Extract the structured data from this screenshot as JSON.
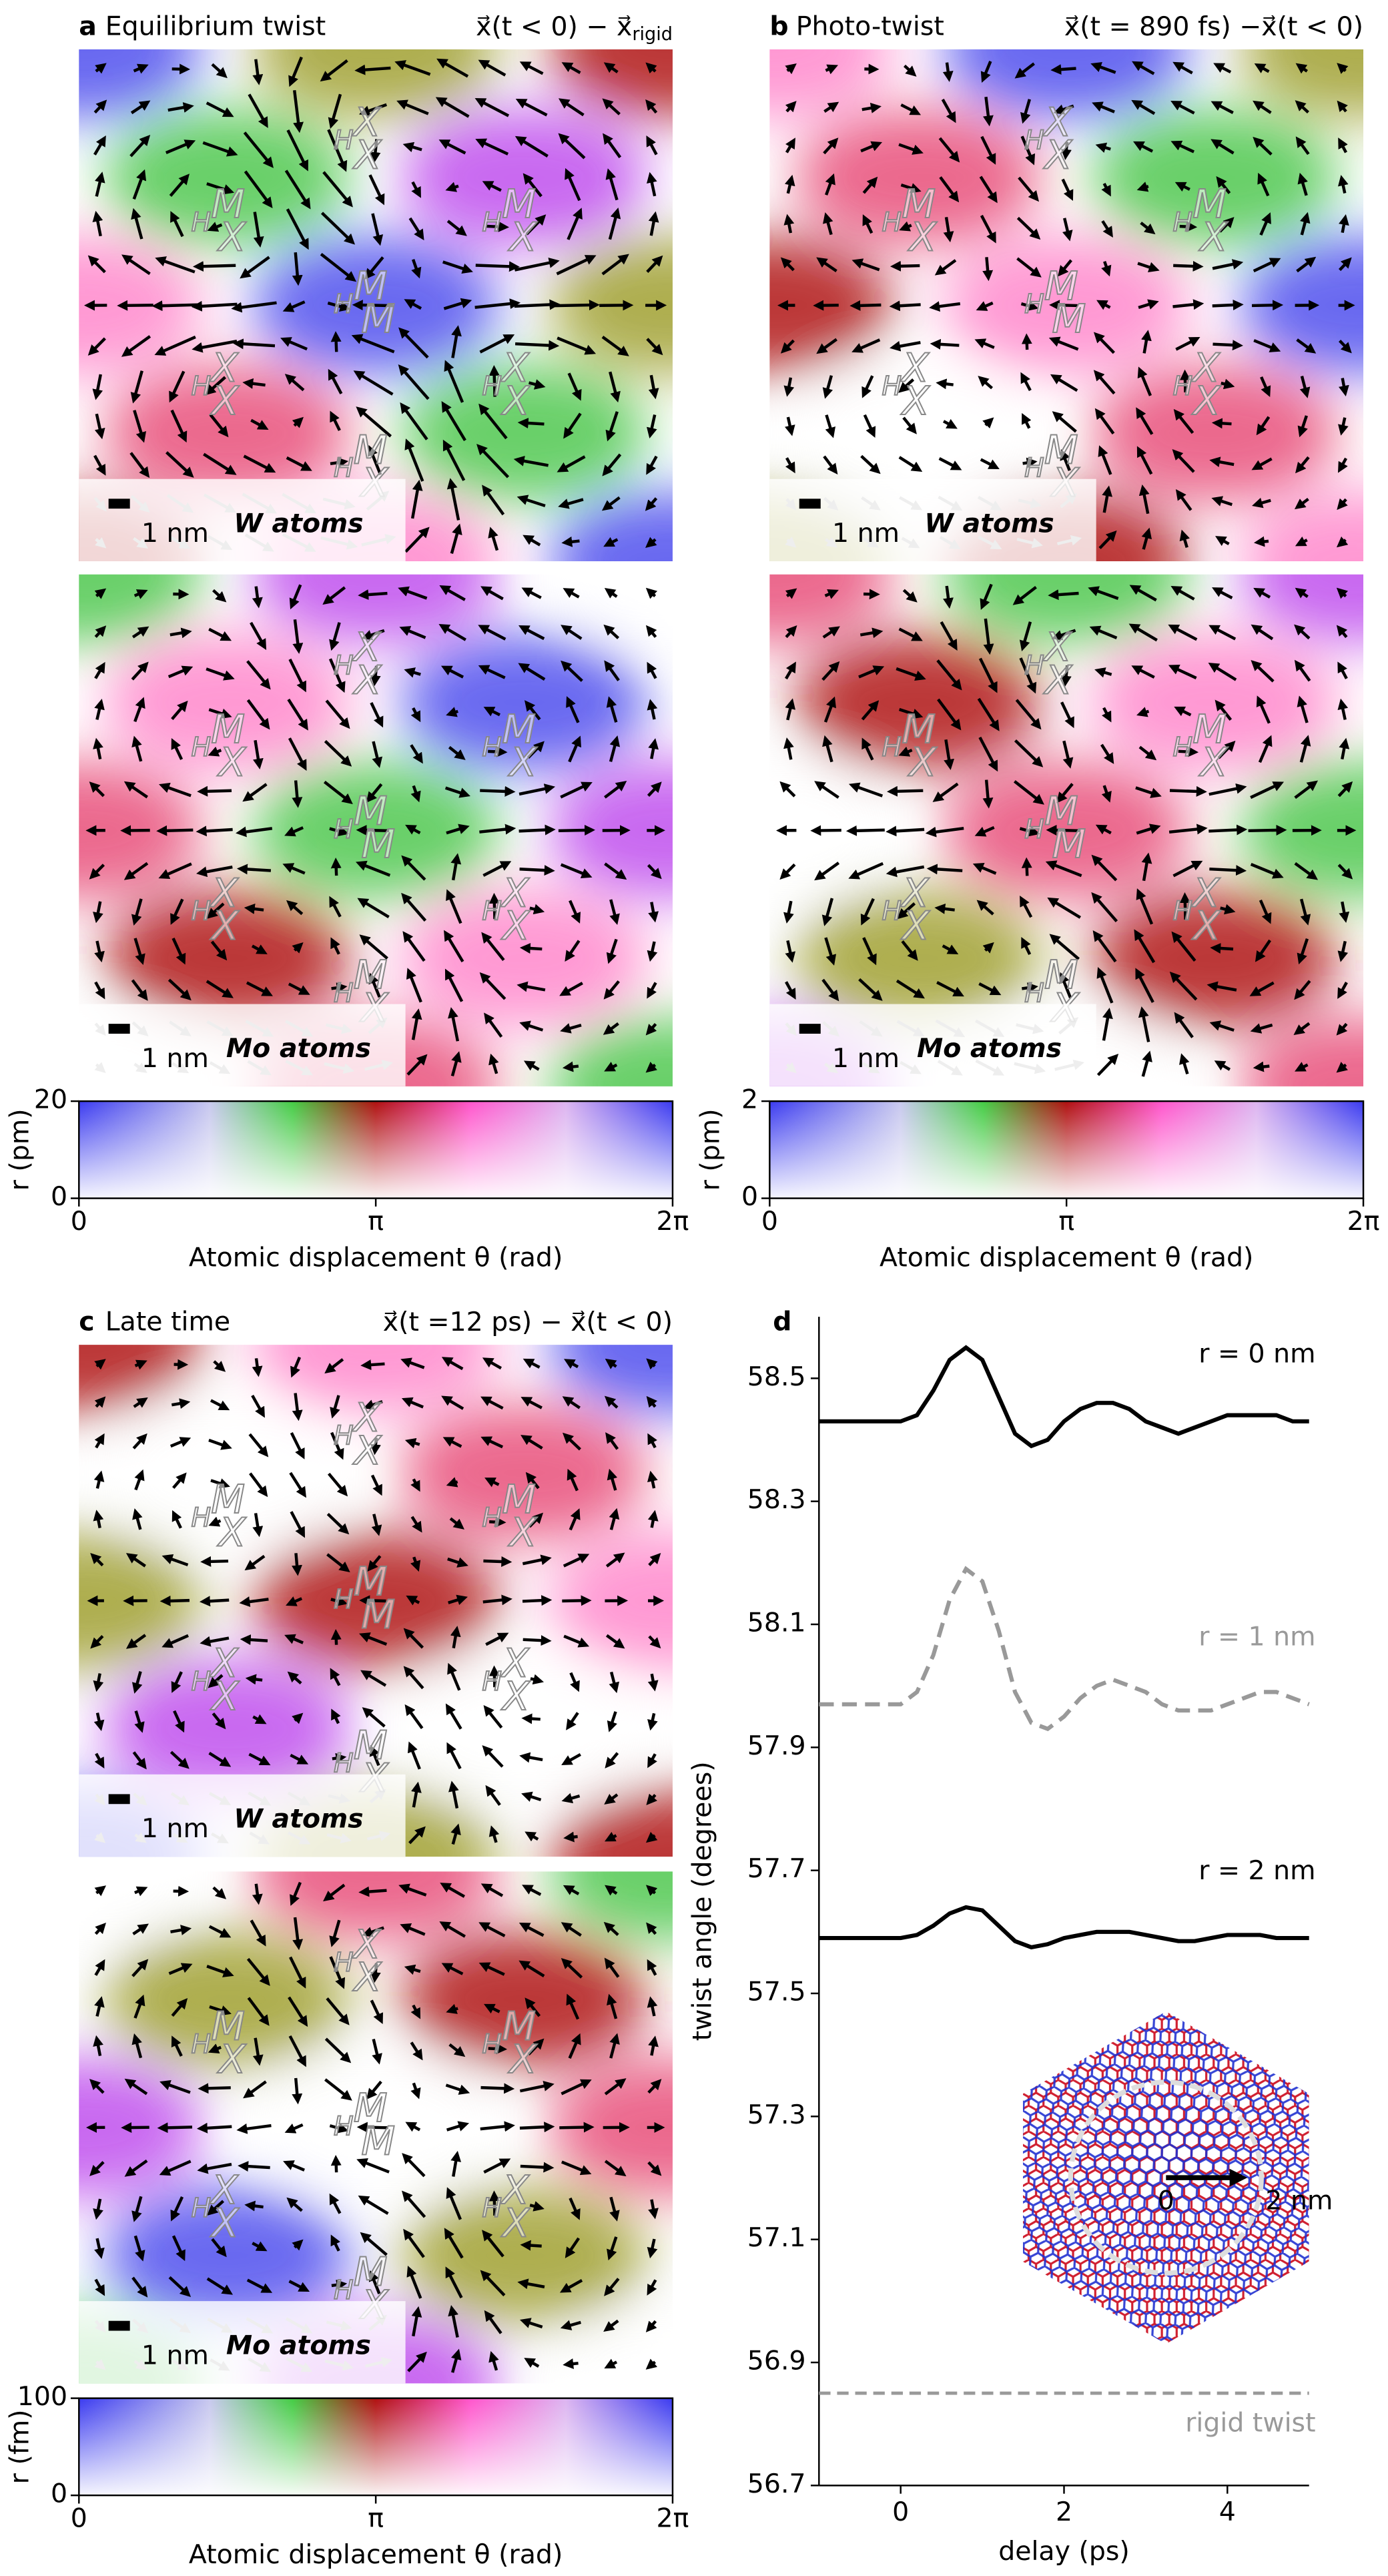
{
  "stacking_labels": [
    {
      "base": "H",
      "sup": "X",
      "sub": "X"
    },
    {
      "base": "H",
      "sup": "M",
      "sub": "X"
    },
    {
      "base": "H",
      "sup": "M",
      "sub": "X"
    },
    {
      "base": "H",
      "sup": "M",
      "sub": "M"
    },
    {
      "base": "H",
      "sup": "X",
      "sub": "X"
    },
    {
      "base": "H",
      "sup": "X",
      "sub": "X"
    },
    {
      "base": "H",
      "sup": "M",
      "sub": "X"
    }
  ],
  "chart_data": [
    {
      "type": "vector_map",
      "panel": "a",
      "title": "Equilibrium twist",
      "formula": "x⃗(t < 0) − x⃗",
      "formula_sub": "rigid",
      "maps": [
        {
          "label": "W atoms",
          "scale_bar": "1 nm"
        },
        {
          "label": "Mo atoms",
          "scale_bar": "1 nm"
        }
      ],
      "colorbar": {
        "xlim": [
          0,
          6.2832
        ],
        "xticks": [
          0,
          {
            "value": 3.1416,
            "label": "π"
          },
          {
            "value": 6.2832,
            "label": "2π"
          }
        ],
        "xlabel": "Atomic displacement θ (rad)",
        "ylim": [
          0,
          20
        ],
        "yticks": [
          0,
          20
        ],
        "ylabel": "r (pm)"
      }
    },
    {
      "type": "vector_map",
      "panel": "b",
      "title": "Photo-twist",
      "formula": "x⃗(t = 890 fs) −x⃗(t < 0)",
      "maps": [
        {
          "label": "W atoms",
          "scale_bar": "1 nm"
        },
        {
          "label": "Mo atoms",
          "scale_bar": "1 nm"
        }
      ],
      "colorbar": {
        "xlim": [
          0,
          6.2832
        ],
        "xticks": [
          0,
          {
            "value": 3.1416,
            "label": "π"
          },
          {
            "value": 6.2832,
            "label": "2π"
          }
        ],
        "xlabel": "Atomic displacement θ (rad)",
        "ylim": [
          0,
          2
        ],
        "yticks": [
          0,
          2
        ],
        "ylabel": "r (pm)"
      }
    },
    {
      "type": "vector_map",
      "panel": "c",
      "title": "Late time",
      "formula": "x⃗(t =12 ps) − x⃗(t < 0)",
      "maps": [
        {
          "label": "W atoms",
          "scale_bar": "1 nm"
        },
        {
          "label": "Mo atoms",
          "scale_bar": "1 nm"
        }
      ],
      "colorbar": {
        "xlim": [
          0,
          6.2832
        ],
        "xticks": [
          0,
          {
            "value": 3.1416,
            "label": "π"
          },
          {
            "value": 6.2832,
            "label": "2π"
          }
        ],
        "xlabel": "Atomic displacement θ (rad)",
        "ylim": [
          0,
          100
        ],
        "yticks": [
          0,
          100
        ],
        "ylabel": "r (fm)"
      }
    },
    {
      "type": "line",
      "panel": "d",
      "xlabel": "delay (ps)",
      "ylabel": "twist angle (degrees)",
      "xlim": [
        -1,
        5
      ],
      "xticks": [
        0,
        2,
        4
      ],
      "ylim": [
        56.7,
        58.6
      ],
      "yticks": [
        56.7,
        56.9,
        57.1,
        57.3,
        57.5,
        57.7,
        57.9,
        58.1,
        58.3,
        58.5
      ],
      "x": [
        -1,
        -0.5,
        0,
        0.2,
        0.4,
        0.6,
        0.8,
        1.0,
        1.2,
        1.4,
        1.6,
        1.8,
        2.0,
        2.2,
        2.4,
        2.6,
        2.8,
        3.0,
        3.2,
        3.4,
        3.6,
        3.8,
        4.0,
        4.2,
        4.4,
        4.6,
        4.8,
        5.0
      ],
      "series": [
        {
          "name": "r = 0 nm",
          "color": "#000000",
          "linestyle": "solid",
          "values": [
            58.43,
            58.43,
            58.43,
            58.44,
            58.48,
            58.53,
            58.55,
            58.53,
            58.47,
            58.41,
            58.39,
            58.4,
            58.43,
            58.45,
            58.46,
            58.46,
            58.45,
            58.43,
            58.42,
            58.41,
            58.42,
            58.43,
            58.44,
            58.44,
            58.44,
            58.44,
            58.43,
            58.43
          ]
        },
        {
          "name": "r = 1 nm",
          "color": "#999999",
          "linestyle": "dashed",
          "values": [
            57.97,
            57.97,
            57.97,
            57.99,
            58.05,
            58.14,
            58.19,
            58.17,
            58.09,
            57.99,
            57.94,
            57.93,
            57.95,
            57.98,
            58.0,
            58.01,
            58.0,
            57.99,
            57.97,
            57.96,
            57.96,
            57.96,
            57.97,
            57.98,
            57.99,
            57.99,
            57.98,
            57.97
          ]
        },
        {
          "name": "r = 2 nm",
          "color": "#000000",
          "linestyle": "solid",
          "values": [
            57.59,
            57.59,
            57.59,
            57.595,
            57.61,
            57.63,
            57.64,
            57.635,
            57.61,
            57.585,
            57.575,
            57.58,
            57.59,
            57.595,
            57.6,
            57.6,
            57.6,
            57.595,
            57.59,
            57.585,
            57.585,
            57.59,
            57.595,
            57.595,
            57.595,
            57.59,
            57.59,
            57.59
          ]
        }
      ],
      "reference": {
        "value": 56.85,
        "label": "rigid twist",
        "color": "#999999",
        "linestyle": "dashed"
      },
      "inset": {
        "origin_label": "0",
        "radius_label": "2 nm"
      }
    }
  ]
}
